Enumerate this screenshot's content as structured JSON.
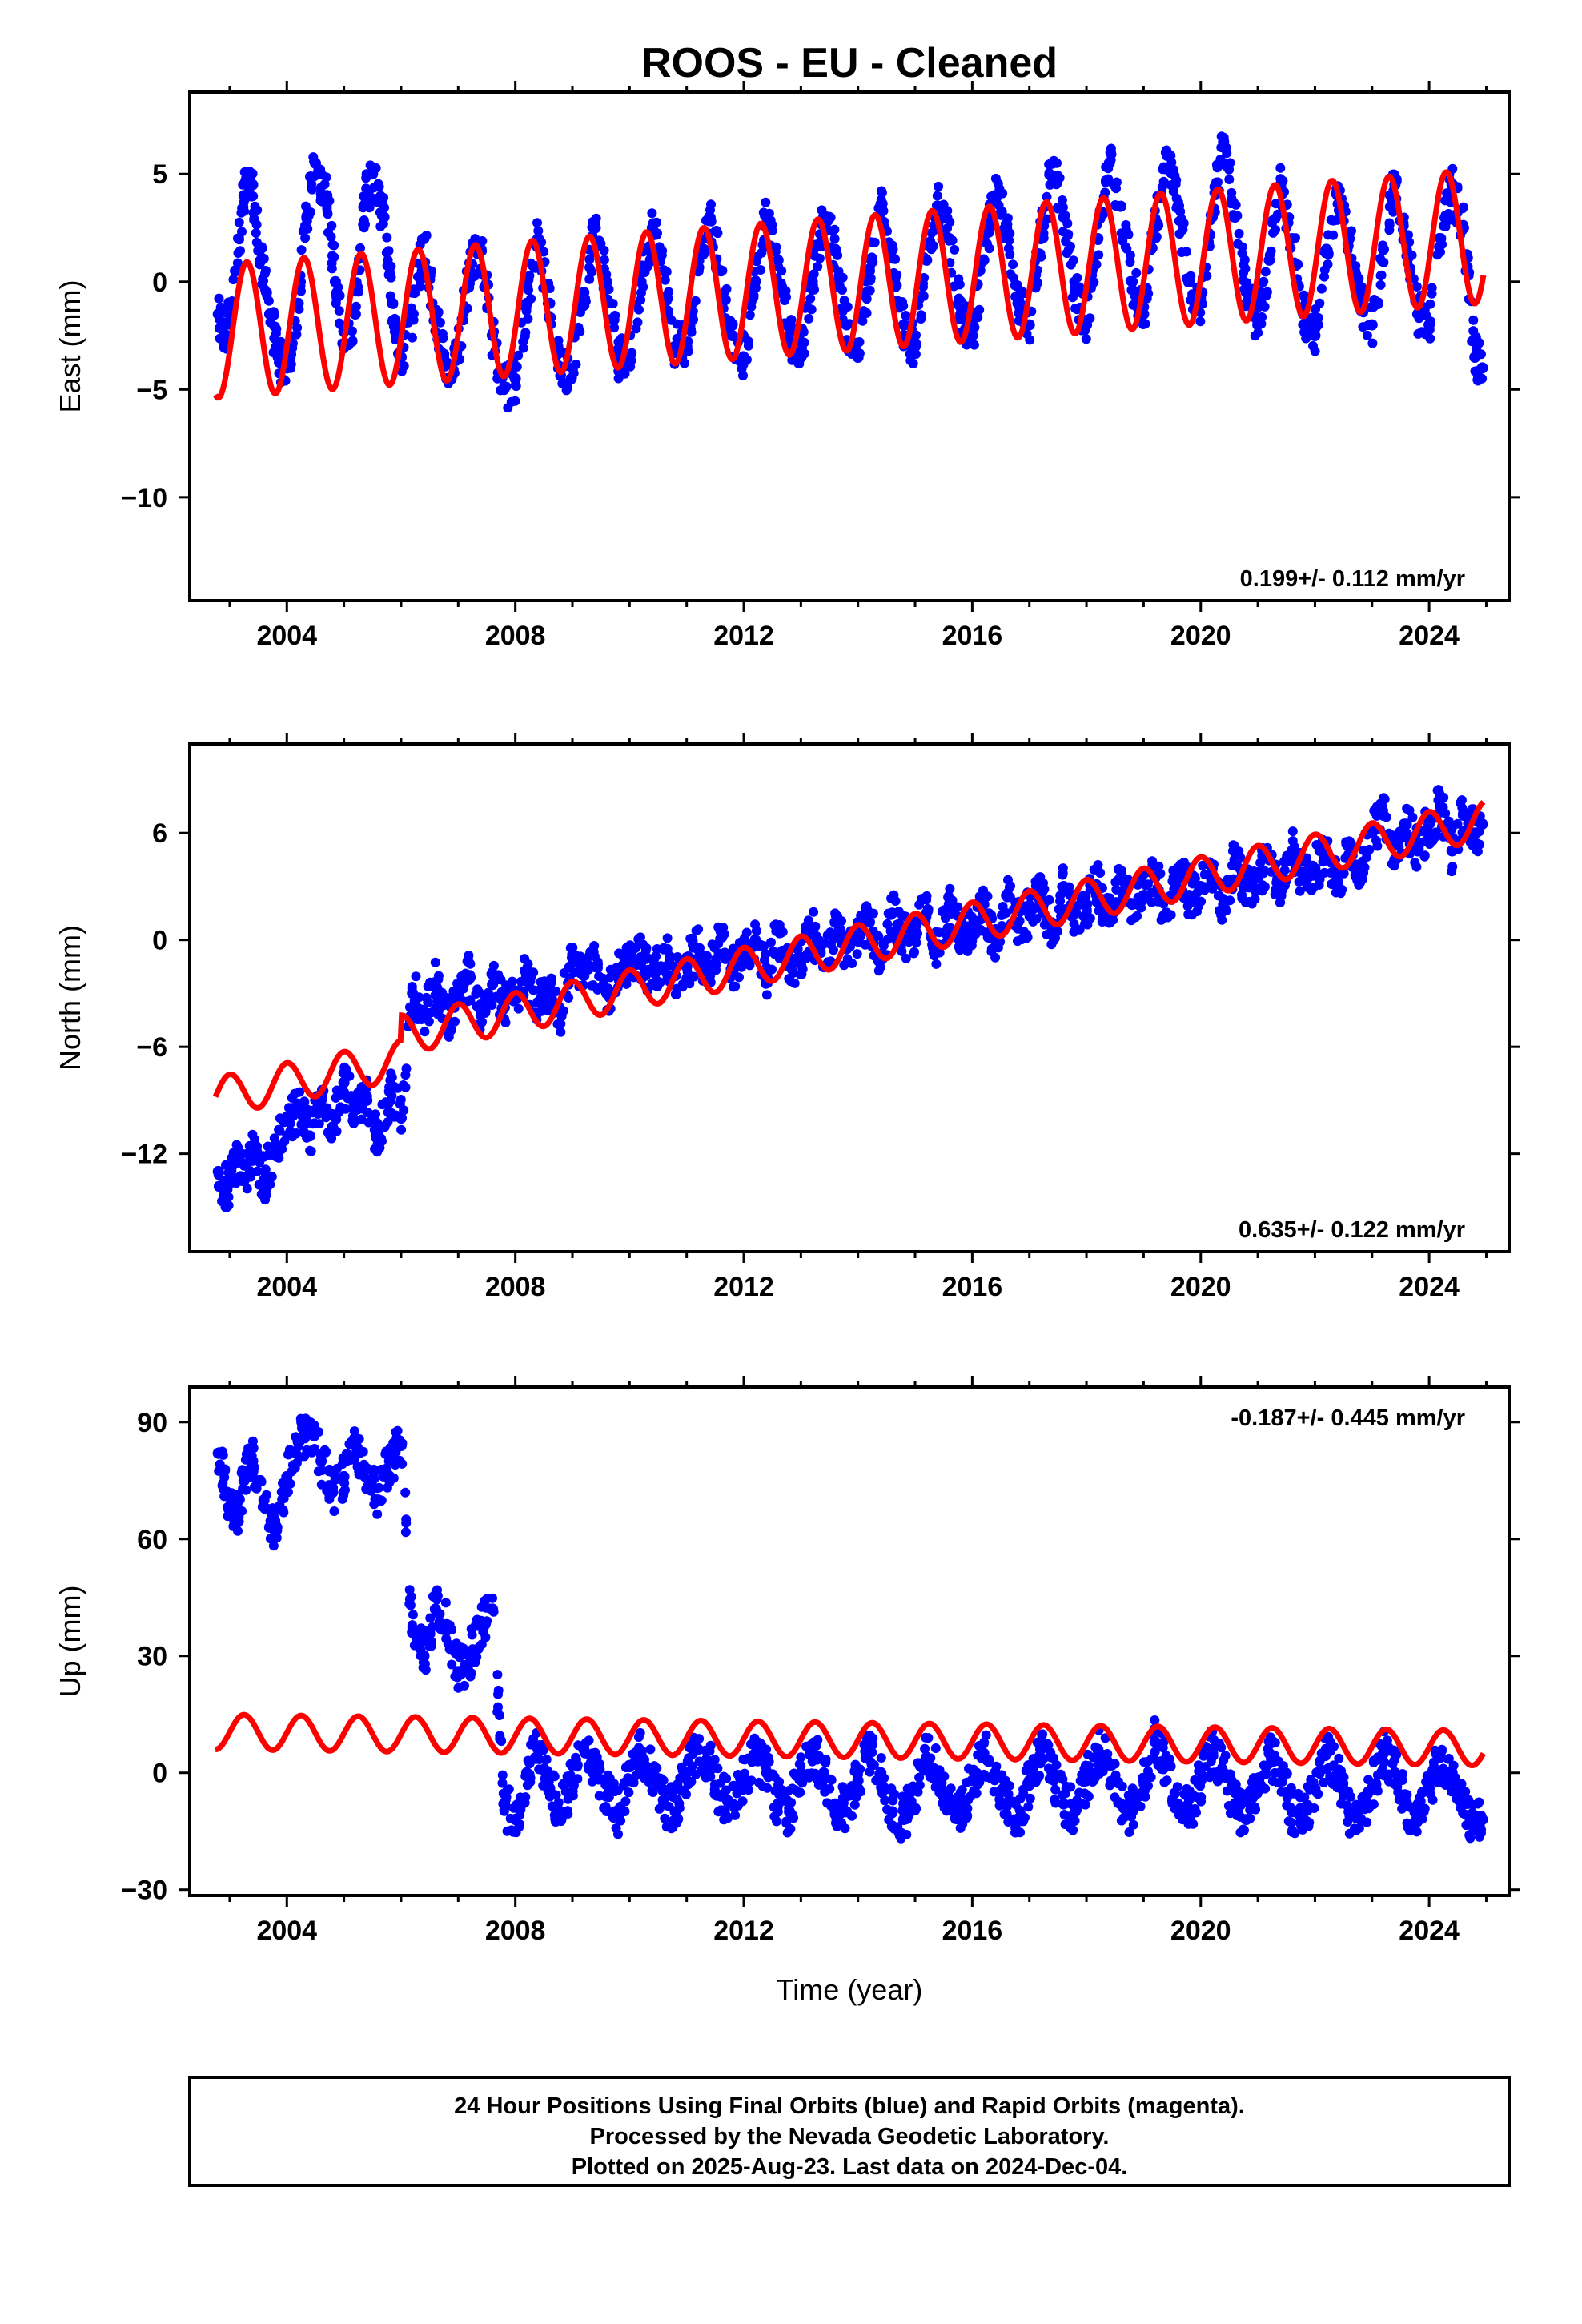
{
  "title": "ROOS  - EU - Cleaned",
  "colors": {
    "data": "#0000ff",
    "model": "#ff0000",
    "frame": "#000000"
  },
  "chart_data": [
    {
      "type": "scatter",
      "panel": "east",
      "ylabel": "East (mm)",
      "xlabel": "",
      "xlim": [
        2002.3,
        2025.4
      ],
      "ylim": [
        -14.8,
        8.8
      ],
      "xticks": [
        "2004",
        "2008",
        "2012",
        "2016",
        "2020",
        "2024"
      ],
      "yticks": [
        "5",
        "0",
        "−5",
        "−10"
      ],
      "rate": "0.199+/- 0.112 mm/yr",
      "rate_position": "bottom-right",
      "series": [
        {
          "name": "24 Hour Positions Using Final Orbits",
          "kind": "points",
          "x": [
            2002.8,
            2002.95,
            2003.1,
            2003.25,
            2003.4,
            2003.55,
            2003.7,
            2003.85,
            2004.0,
            2004.2,
            2004.35,
            2004.5,
            2004.7,
            2004.85,
            2005.0,
            2005.2,
            2005.35,
            2005.5,
            2005.7,
            2005.85,
            2006.0,
            2006.2,
            2006.4,
            2006.6,
            2006.8,
            2007.0,
            2007.2,
            2007.4,
            2007.6,
            2007.8,
            2008.0,
            2008.2,
            2008.4,
            2008.6,
            2008.8,
            2009.0,
            2009.2,
            2009.4,
            2009.6,
            2009.8,
            2010.0,
            2010.2,
            2010.4,
            2010.6,
            2010.8,
            2011.0,
            2011.2,
            2011.4,
            2011.6,
            2011.8,
            2012.0,
            2012.2,
            2012.4,
            2012.6,
            2012.8,
            2013.0,
            2013.2,
            2013.4,
            2013.6,
            2013.8,
            2014.0,
            2014.2,
            2014.4,
            2014.6,
            2014.8,
            2015.0,
            2015.2,
            2015.4,
            2015.6,
            2015.8,
            2016.0,
            2016.2,
            2016.4,
            2016.6,
            2016.8,
            2017.0,
            2017.2,
            2017.4,
            2017.6,
            2017.8,
            2018.0,
            2018.2,
            2018.4,
            2018.6,
            2018.8,
            2019.0,
            2019.2,
            2019.4,
            2019.6,
            2019.8,
            2020.0,
            2020.2,
            2020.4,
            2020.6,
            2020.8,
            2021.0,
            2021.2,
            2021.4,
            2021.6,
            2021.8,
            2022.0,
            2022.2,
            2022.4,
            2022.6,
            2022.8,
            2023.0,
            2023.2,
            2023.4,
            2023.6,
            2023.8,
            2024.0,
            2024.2,
            2024.4,
            2024.6,
            2024.8,
            2024.93
          ],
          "y": [
            -1.5,
            -2.5,
            0.5,
            4.0,
            4.5,
            1.0,
            -1.5,
            -3.5,
            -4.0,
            -1.0,
            3.0,
            5.5,
            4.0,
            0.0,
            -3.0,
            -1.5,
            3.5,
            5.0,
            3.0,
            -1.0,
            -3.5,
            -1.5,
            2.0,
            -1.5,
            -4.5,
            -3.0,
            0.5,
            1.5,
            -2.5,
            -5.0,
            -4.5,
            -1.0,
            2.0,
            -1.0,
            -4.0,
            -4.0,
            -0.5,
            2.5,
            0.0,
            -3.5,
            -3.5,
            0.0,
            2.5,
            0.5,
            -3.0,
            -3.0,
            0.5,
            3.0,
            0.5,
            -2.5,
            -3.5,
            0.0,
            3.0,
            1.0,
            -2.5,
            -3.5,
            0.0,
            3.0,
            1.5,
            -2.0,
            -3.5,
            0.5,
            3.5,
            1.5,
            -2.0,
            -3.0,
            1.0,
            3.5,
            2.0,
            -1.5,
            -2.5,
            1.0,
            4.0,
            2.5,
            -1.0,
            -2.0,
            2.0,
            5.5,
            3.0,
            -0.5,
            -2.0,
            2.0,
            5.5,
            3.5,
            0.0,
            -1.5,
            2.5,
            6.0,
            3.5,
            0.0,
            -1.0,
            3.0,
            6.5,
            3.0,
            -0.5,
            -2.0,
            1.0,
            4.5,
            2.0,
            -1.5,
            -2.5,
            1.5,
            4.0,
            2.0,
            -1.0,
            -2.0,
            1.5,
            4.5,
            2.0,
            -1.5,
            -2.0,
            2.0,
            4.5,
            2.5,
            -3.5,
            -4.0
          ]
        },
        {
          "name": "Model fit",
          "kind": "line",
          "fn": {
            "t0": 2002.75,
            "offset": -2.3,
            "rate": 0.199,
            "amp": 3.1,
            "phase": 2003.3
          }
        }
      ]
    },
    {
      "type": "scatter",
      "panel": "north",
      "ylabel": "North (mm)",
      "xlabel": "",
      "xlim": [
        2002.3,
        2025.4
      ],
      "ylim": [
        -17.5,
        11.0
      ],
      "xticks": [
        "2004",
        "2008",
        "2012",
        "2016",
        "2020",
        "2024"
      ],
      "yticks": [
        "6",
        "0",
        "−6",
        "−12"
      ],
      "rate": "0.635+/- 0.122 mm/yr",
      "rate_position": "bottom-right",
      "series": [
        {
          "name": "24 Hour Positions Using Final Orbits",
          "kind": "points",
          "x": [
            2002.8,
            2002.95,
            2003.1,
            2003.25,
            2003.4,
            2003.6,
            2003.8,
            2004.0,
            2004.2,
            2004.4,
            2004.6,
            2004.8,
            2005.0,
            2005.2,
            2005.4,
            2005.6,
            2005.8,
            2006.0,
            2006.2,
            2006.4,
            2006.6,
            2006.8,
            2007.0,
            2007.2,
            2007.4,
            2007.6,
            2007.8,
            2008.0,
            2008.2,
            2008.4,
            2008.6,
            2008.8,
            2009.0,
            2009.2,
            2009.4,
            2009.6,
            2009.8,
            2010.0,
            2010.2,
            2010.4,
            2010.6,
            2010.8,
            2011.0,
            2011.2,
            2011.4,
            2011.6,
            2011.8,
            2012.0,
            2012.2,
            2012.4,
            2012.6,
            2012.8,
            2013.0,
            2013.2,
            2013.4,
            2013.6,
            2013.8,
            2014.0,
            2014.2,
            2014.4,
            2014.6,
            2014.8,
            2015.0,
            2015.2,
            2015.4,
            2015.6,
            2015.8,
            2016.0,
            2016.2,
            2016.4,
            2016.6,
            2016.8,
            2017.0,
            2017.2,
            2017.4,
            2017.6,
            2017.8,
            2018.0,
            2018.2,
            2018.4,
            2018.6,
            2018.8,
            2019.0,
            2019.2,
            2019.4,
            2019.6,
            2019.8,
            2020.0,
            2020.2,
            2020.4,
            2020.6,
            2020.8,
            2021.0,
            2021.2,
            2021.4,
            2021.6,
            2021.8,
            2022.0,
            2022.2,
            2022.4,
            2022.6,
            2022.8,
            2023.0,
            2023.2,
            2023.4,
            2023.6,
            2023.8,
            2024.0,
            2024.2,
            2024.4,
            2024.6,
            2024.8,
            2024.93
          ],
          "y": [
            -13.0,
            -14.0,
            -12.5,
            -13.5,
            -12.0,
            -13.5,
            -11.5,
            -10.0,
            -9.5,
            -11.0,
            -9.0,
            -10.5,
            -8.0,
            -9.5,
            -9.0,
            -11.5,
            -8.5,
            -10.0,
            -3.0,
            -4.0,
            -2.5,
            -4.5,
            -3.0,
            -2.0,
            -4.0,
            -2.5,
            -3.5,
            -3.0,
            -2.0,
            -3.5,
            -2.5,
            -4.0,
            -1.0,
            -2.0,
            -1.5,
            -3.0,
            -2.0,
            -1.5,
            -1.0,
            -2.5,
            -0.5,
            -2.0,
            -1.5,
            -0.5,
            -2.0,
            0.5,
            -1.5,
            -1.0,
            0.0,
            -2.0,
            0.5,
            -1.5,
            -1.0,
            0.5,
            -1.5,
            1.0,
            -0.5,
            0.0,
            1.0,
            -1.0,
            1.5,
            0.0,
            0.5,
            1.5,
            -0.5,
            2.0,
            0.5,
            0.5,
            2.0,
            0.0,
            2.5,
            1.0,
            1.5,
            2.5,
            0.5,
            3.0,
            1.5,
            2.0,
            3.0,
            1.0,
            3.5,
            2.0,
            2.5,
            3.5,
            1.5,
            4.0,
            2.5,
            3.0,
            4.0,
            2.0,
            4.5,
            3.0,
            3.5,
            4.5,
            2.5,
            5.0,
            3.5,
            4.0,
            5.0,
            3.0,
            5.5,
            4.0,
            6.0,
            7.0,
            4.5,
            6.5,
            5.0,
            6.5,
            7.5,
            5.0,
            7.0,
            6.0,
            6.5
          ]
        },
        {
          "name": "Model fit",
          "kind": "line",
          "fn": {
            "t0": 2002.75,
            "offset": -8.8,
            "rate": 0.635,
            "amp": 1.1,
            "phase": 2003.0,
            "steps": [
              [
                2006.0,
                1.4
              ]
            ]
          }
        }
      ]
    },
    {
      "type": "scatter",
      "panel": "up",
      "ylabel": "Up (mm)",
      "xlabel": "Time (year)",
      "xlim": [
        2002.3,
        2025.4
      ],
      "ylim": [
        -31.5,
        99.0
      ],
      "xticks": [
        "2004",
        "2008",
        "2012",
        "2016",
        "2020",
        "2024"
      ],
      "yticks": [
        "90",
        "60",
        "30",
        "0",
        "−30"
      ],
      "rate": "-0.187+/- 0.445 mm/yr",
      "rate_position": "top-right",
      "series": [
        {
          "name": "24 Hour Positions Using Final Orbits",
          "kind": "points",
          "x": [
            2002.8,
            2002.95,
            2003.1,
            2003.25,
            2003.4,
            2003.6,
            2003.8,
            2004.0,
            2004.2,
            2004.4,
            2004.6,
            2004.8,
            2005.0,
            2005.2,
            2005.4,
            2005.6,
            2005.8,
            2006.0,
            2006.2,
            2006.4,
            2006.6,
            2006.8,
            2007.0,
            2007.2,
            2007.4,
            2007.6,
            2007.8,
            2008.0,
            2008.2,
            2008.4,
            2008.6,
            2008.8,
            2009.0,
            2009.2,
            2009.4,
            2009.6,
            2009.8,
            2010.0,
            2010.2,
            2010.4,
            2010.6,
            2010.8,
            2011.0,
            2011.2,
            2011.4,
            2011.6,
            2011.8,
            2012.0,
            2012.2,
            2012.4,
            2012.6,
            2012.8,
            2013.0,
            2013.2,
            2013.4,
            2013.6,
            2013.8,
            2014.0,
            2014.2,
            2014.4,
            2014.6,
            2014.8,
            2015.0,
            2015.2,
            2015.4,
            2015.6,
            2015.8,
            2016.0,
            2016.2,
            2016.4,
            2016.6,
            2016.8,
            2017.0,
            2017.2,
            2017.4,
            2017.6,
            2017.8,
            2018.0,
            2018.2,
            2018.4,
            2018.6,
            2018.8,
            2019.0,
            2019.2,
            2019.4,
            2019.6,
            2019.8,
            2020.0,
            2020.2,
            2020.4,
            2020.6,
            2020.8,
            2021.0,
            2021.2,
            2021.4,
            2021.6,
            2021.8,
            2022.0,
            2022.2,
            2022.4,
            2022.6,
            2022.8,
            2023.0,
            2023.2,
            2023.4,
            2023.6,
            2023.8,
            2024.0,
            2024.2,
            2024.4,
            2024.6,
            2024.8,
            2024.93
          ],
          "y": [
            82.0,
            72.0,
            65.0,
            75.0,
            80.0,
            70.0,
            62.0,
            76.0,
            85.0,
            88.0,
            80.0,
            72.0,
            76.0,
            84.0,
            78.0,
            70.0,
            80.0,
            84.0,
            36.0,
            30.0,
            42.0,
            38.0,
            26.0,
            30.0,
            38.0,
            42.0,
            -8.0,
            -12.0,
            0.0,
            6.0,
            -4.0,
            -10.0,
            -2.0,
            6.0,
            2.0,
            -6.0,
            -10.0,
            -2.0,
            5.0,
            0.0,
            -8.0,
            -10.0,
            0.0,
            6.0,
            2.0,
            -6.0,
            -8.0,
            -2.0,
            5.0,
            0.0,
            -8.0,
            -10.0,
            0.0,
            5.0,
            0.0,
            -8.0,
            -10.0,
            -2.0,
            6.0,
            0.0,
            -10.0,
            -12.0,
            -4.0,
            4.0,
            0.0,
            -8.0,
            -10.0,
            -2.0,
            5.0,
            0.0,
            -8.0,
            -12.0,
            -2.0,
            6.0,
            0.0,
            -8.0,
            -10.0,
            -2.0,
            6.0,
            2.0,
            -8.0,
            -10.0,
            -2.0,
            8.0,
            2.0,
            -8.0,
            -10.0,
            -2.0,
            6.0,
            0.0,
            -8.0,
            -12.0,
            -4.0,
            5.0,
            0.0,
            -10.0,
            -12.0,
            -4.0,
            5.0,
            0.0,
            -10.0,
            -12.0,
            -4.0,
            5.0,
            0.0,
            -8.0,
            -12.0,
            -4.0,
            4.0,
            0.0,
            -8.0,
            -14.0,
            -12.0
          ]
        },
        {
          "name": "Model fit",
          "kind": "line",
          "fn": {
            "t0": 2002.75,
            "offset": 10.5,
            "rate": -0.187,
            "amp": 4.5,
            "phase": 2003.25
          }
        }
      ]
    }
  ],
  "footer": {
    "line1": "24 Hour Positions Using Final Orbits (blue) and Rapid Orbits (magenta).",
    "line2": "Processed by the Nevada Geodetic Laboratory.",
    "line3": "Plotted on 2025-Aug-23. Last data on 2024-Dec-04."
  }
}
